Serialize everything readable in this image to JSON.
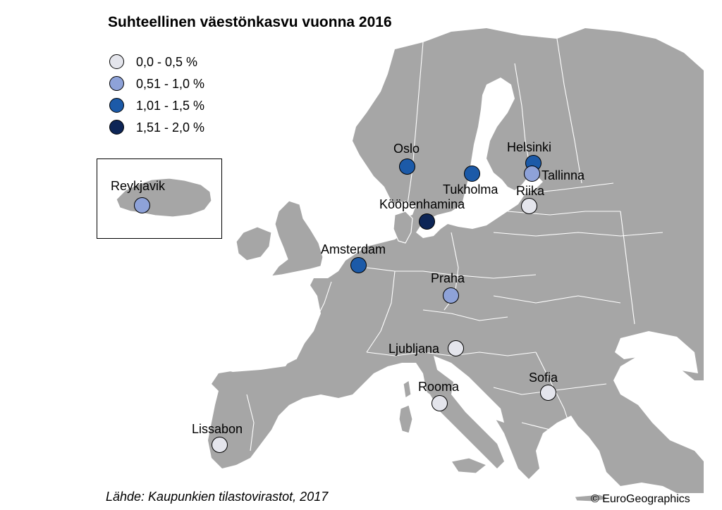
{
  "title": "Suhteellinen väestönkasvu vuonna 2016",
  "legend": {
    "items": [
      {
        "label": "0,0 - 0,5 %",
        "color": "#e4e5ec"
      },
      {
        "label": "0,51 - 1,0 %",
        "color": "#8ea2d8"
      },
      {
        "label": "1,01 - 1,5 %",
        "color": "#1c5aa8"
      },
      {
        "label": "1,51 - 2,0 %",
        "color": "#0d2556"
      }
    ]
  },
  "cities": [
    {
      "id": "oslo",
      "name": "Oslo",
      "class": 2
    },
    {
      "id": "helsinki",
      "name": "Helsinki",
      "class": 2
    },
    {
      "id": "tallinna",
      "name": "Tallinna",
      "class": 1
    },
    {
      "id": "tukholma",
      "name": "Tukholma",
      "class": 2
    },
    {
      "id": "riika",
      "name": "Riika",
      "class": 0
    },
    {
      "id": "reykjavik",
      "name": "Reykjavik",
      "class": 1
    },
    {
      "id": "koopenhamina",
      "name": "Kööpenhamina",
      "class": 3
    },
    {
      "id": "amsterdam",
      "name": "Amsterdam",
      "class": 2
    },
    {
      "id": "praha",
      "name": "Praha",
      "class": 1
    },
    {
      "id": "ljubljana",
      "name": "Ljubljana",
      "class": 0
    },
    {
      "id": "sofia",
      "name": "Sofia",
      "class": 0
    },
    {
      "id": "rooma",
      "name": "Rooma",
      "class": 0
    },
    {
      "id": "lissabon",
      "name": "Lissabon",
      "class": 0
    }
  ],
  "source": "Lähde: Kaupunkien tilastovirastot, 2017",
  "copyright": "© EuroGeographics",
  "colors": {
    "land": "#a6a6a6",
    "borders": "#ffffff",
    "sea": "#ffffff"
  }
}
